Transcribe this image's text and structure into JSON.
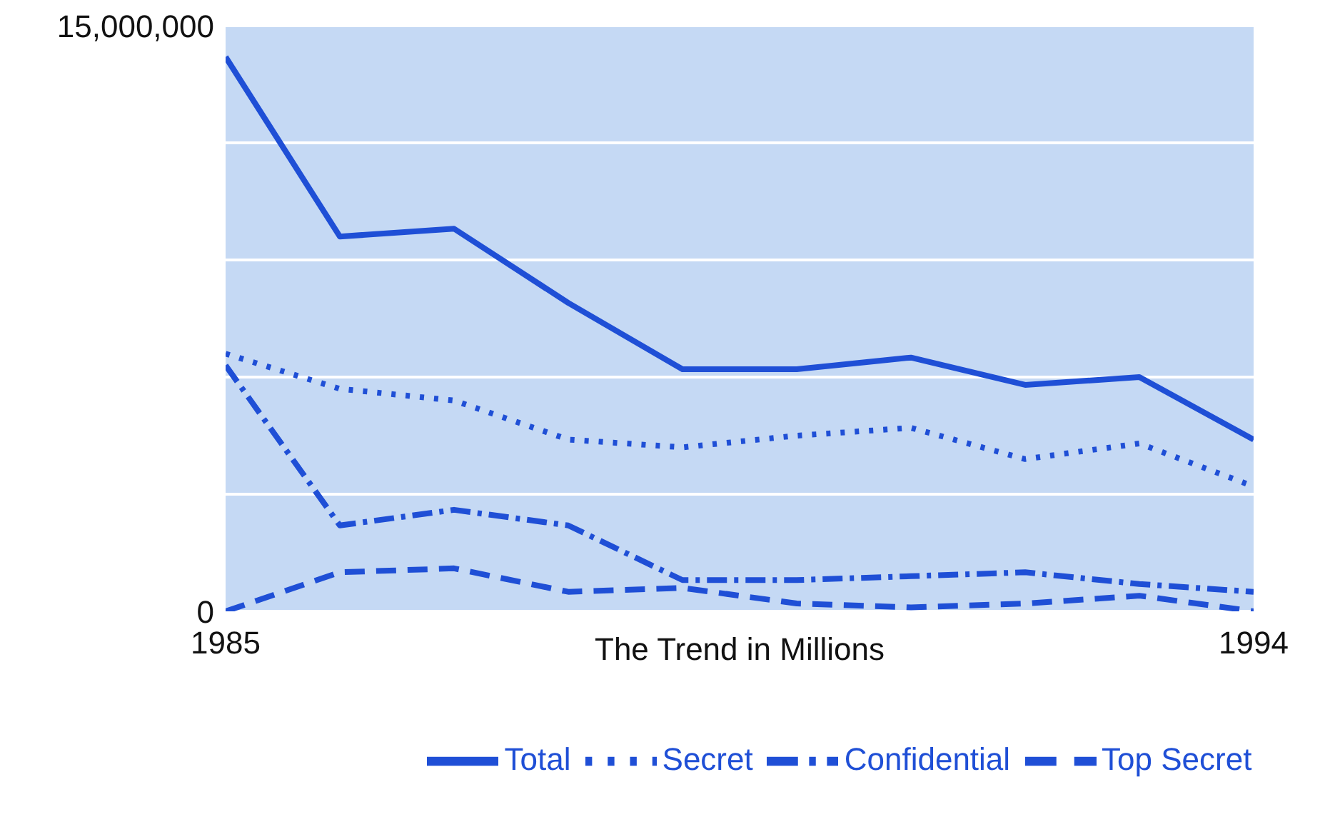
{
  "chart_data": {
    "type": "line",
    "xlabel": "The Trend in Millions",
    "x": [
      1985,
      1986,
      1987,
      1988,
      1989,
      1990,
      1991,
      1992,
      1993,
      1994
    ],
    "xlim": [
      1985,
      1994
    ],
    "xticks": [
      1985,
      1994
    ],
    "ylim": [
      0,
      15000000
    ],
    "yticks": [
      {
        "value": 0,
        "label": "0"
      },
      {
        "value": 3000000,
        "label": null
      },
      {
        "value": 6000000,
        "label": null
      },
      {
        "value": 9000000,
        "label": null
      },
      {
        "value": 12000000,
        "label": null
      },
      {
        "value": 15000000,
        "label": "15,000,000"
      }
    ],
    "grid": "y",
    "legend": "bottom",
    "marker": "none",
    "series": [
      {
        "name": "Total",
        "color": "#1f4fd6",
        "line_style": "solid",
        "values": [
          14200000,
          9600000,
          9800000,
          7900000,
          6200000,
          6200000,
          6500000,
          5800000,
          6000000,
          4400000
        ]
      },
      {
        "name": "Secret",
        "color": "#1f4fd6",
        "line_style": "dotted",
        "values": [
          6600000,
          5700000,
          5400000,
          4400000,
          4200000,
          4500000,
          4700000,
          3900000,
          4300000,
          3200000
        ]
      },
      {
        "name": "Confidential",
        "color": "#1f4fd6",
        "line_style": "dashdot",
        "values": [
          6300000,
          2200000,
          2600000,
          2200000,
          800000,
          800000,
          900000,
          1000000,
          700000,
          500000
        ]
      },
      {
        "name": "Top Secret",
        "color": "#1f4fd6",
        "line_style": "dashed",
        "values": [
          0,
          1000000,
          1100000,
          500000,
          600000,
          200000,
          100000,
          200000,
          400000,
          0
        ]
      }
    ]
  }
}
